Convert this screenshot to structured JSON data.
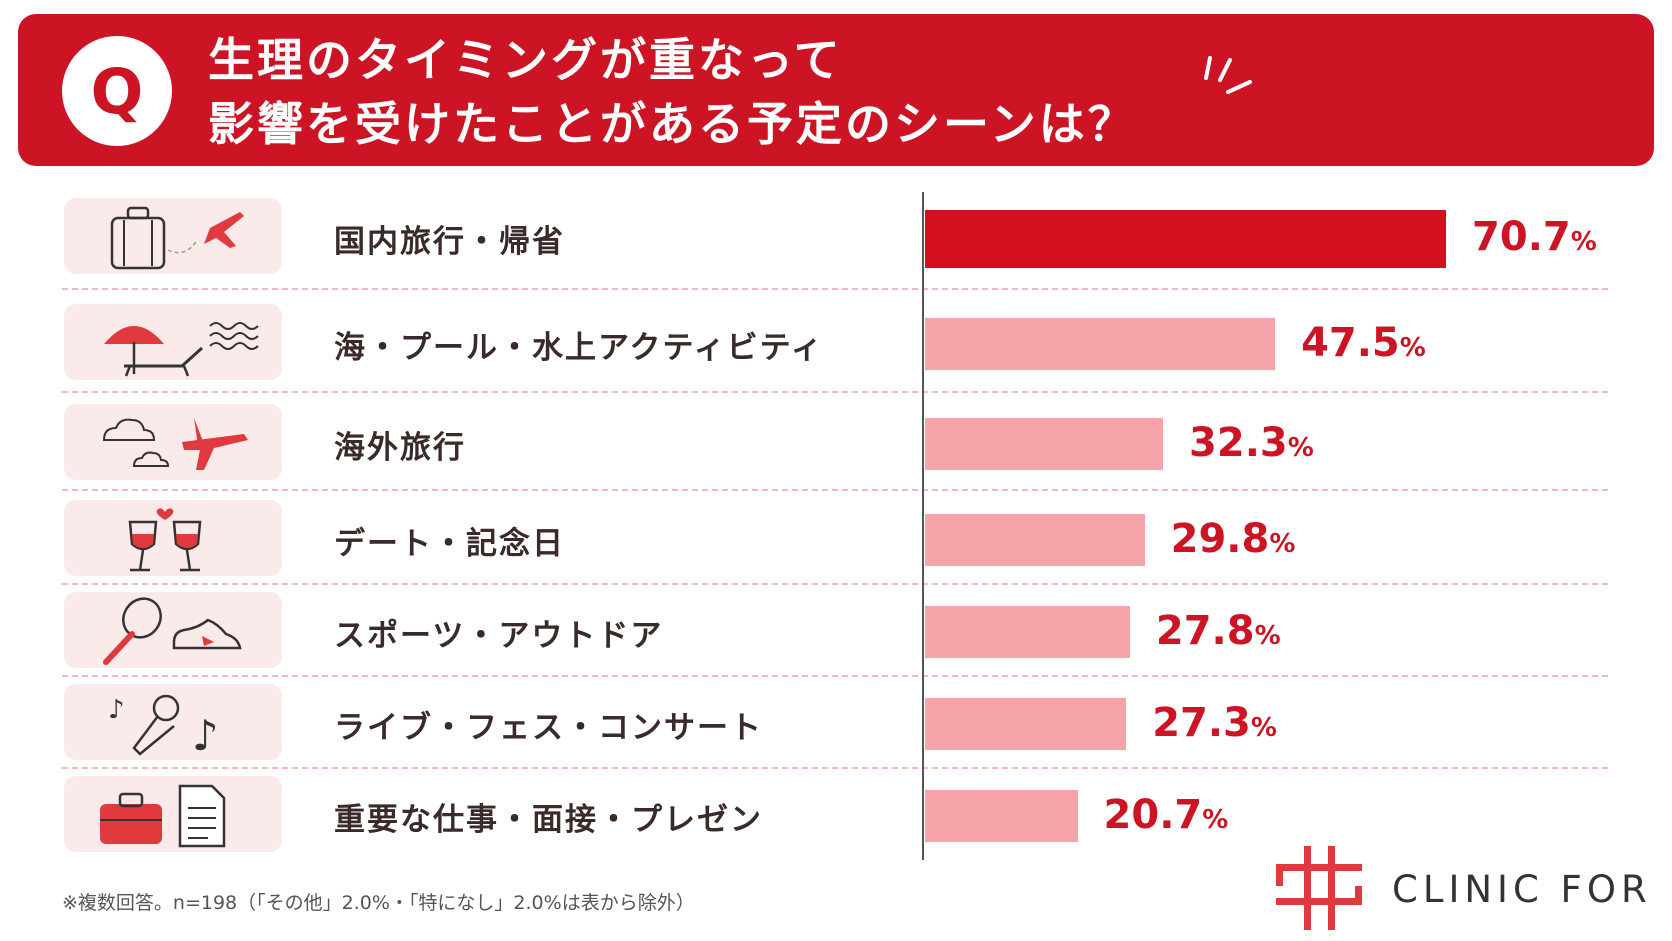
{
  "header": {
    "q_letter": "Q",
    "title_line1": "生理のタイミングが重なって",
    "title_line2": "影響を受けたことがある予定のシーンは？"
  },
  "chart_data": {
    "type": "bar",
    "orientation": "horizontal",
    "categories": [
      "国内旅行・帰省",
      "海・プール・水上アクティビティ",
      "海外旅行",
      "デート・記念日",
      "スポーツ・アウトドア",
      "ライブ・フェス・コンサート",
      "重要な仕事・面接・プレゼン"
    ],
    "values": [
      70.7,
      47.5,
      32.3,
      29.8,
      27.8,
      27.3,
      20.7
    ],
    "value_labels": [
      "70.7",
      "47.5",
      "32.3",
      "29.8",
      "27.8",
      "27.3",
      "20.7"
    ],
    "unit": "%",
    "xlim": [
      0,
      100
    ],
    "icons": [
      "suitcase-airplane-icon",
      "beach-umbrella-icon",
      "cloud-airplane-icon",
      "wine-glasses-icon",
      "racket-sneaker-icon",
      "microphone-music-icon",
      "briefcase-document-icon"
    ],
    "colors": {
      "highlight": "#d40f1f",
      "bar": "#f7a3aa",
      "label": "#cc1424"
    }
  },
  "footnote": "※複数回答。n=198（「その他」2.0%・「特になし」2.0%は表から除外）",
  "logo": {
    "text": "CLINIC FOR",
    "color": "#e03a3e"
  }
}
